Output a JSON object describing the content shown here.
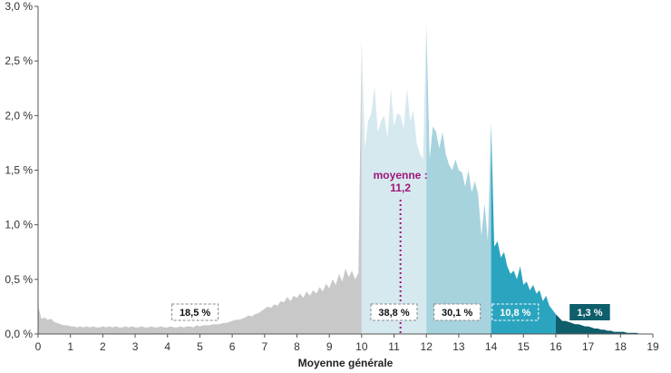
{
  "chart_data": {
    "type": "area",
    "xlabel": "Moyenne générale",
    "ylabel": "",
    "xlim": [
      0,
      19
    ],
    "ylim": [
      0,
      3.0
    ],
    "x_ticks": [
      0,
      1,
      2,
      3,
      4,
      5,
      6,
      7,
      8,
      9,
      10,
      11,
      12,
      13,
      14,
      15,
      16,
      17,
      18,
      19
    ],
    "y_ticks": [
      "0,0 %",
      "0,5 %",
      "1,0 %",
      "1,5 %",
      "2,0 %",
      "2,5 %",
      "3,0 %"
    ],
    "grid": false,
    "x_step": 0.1,
    "values": [
      0.26,
      0.14,
      0.15,
      0.13,
      0.14,
      0.11,
      0.1,
      0.09,
      0.08,
      0.08,
      0.07,
      0.07,
      0.06,
      0.07,
      0.06,
      0.07,
      0.06,
      0.07,
      0.06,
      0.06,
      0.07,
      0.06,
      0.07,
      0.06,
      0.07,
      0.06,
      0.06,
      0.07,
      0.06,
      0.07,
      0.06,
      0.06,
      0.07,
      0.06,
      0.06,
      0.07,
      0.06,
      0.06,
      0.07,
      0.06,
      0.06,
      0.07,
      0.06,
      0.06,
      0.07,
      0.06,
      0.07,
      0.07,
      0.06,
      0.08,
      0.07,
      0.08,
      0.08,
      0.08,
      0.09,
      0.09,
      0.09,
      0.1,
      0.1,
      0.11,
      0.12,
      0.13,
      0.13,
      0.14,
      0.15,
      0.17,
      0.16,
      0.18,
      0.19,
      0.21,
      0.23,
      0.25,
      0.24,
      0.27,
      0.26,
      0.3,
      0.29,
      0.34,
      0.3,
      0.35,
      0.33,
      0.37,
      0.33,
      0.39,
      0.35,
      0.4,
      0.37,
      0.43,
      0.39,
      0.46,
      0.42,
      0.5,
      0.45,
      0.55,
      0.48,
      0.6,
      0.52,
      0.58,
      0.5,
      0.56,
      2.7,
      1.7,
      1.95,
      2.02,
      2.27,
      1.85,
      1.95,
      2.0,
      1.8,
      2.25,
      1.9,
      2.02,
      2.0,
      1.88,
      2.25,
      1.95,
      2.05,
      1.75,
      1.65,
      1.6,
      2.85,
      1.6,
      1.9,
      1.85,
      1.7,
      1.85,
      1.65,
      1.55,
      1.5,
      1.6,
      1.5,
      1.48,
      1.35,
      1.5,
      1.3,
      1.4,
      1.28,
      0.9,
      1.2,
      0.85,
      1.93,
      0.8,
      0.85,
      0.7,
      0.75,
      0.62,
      0.55,
      0.58,
      0.5,
      0.62,
      0.45,
      0.48,
      0.4,
      0.45,
      0.37,
      0.4,
      0.3,
      0.35,
      0.26,
      0.22,
      0.18,
      0.15,
      0.12,
      0.12,
      0.11,
      0.1,
      0.09,
      0.09,
      0.08,
      0.07,
      0.07,
      0.06,
      0.05,
      0.05,
      0.04,
      0.04,
      0.03,
      0.03,
      0.02,
      0.02,
      0.02,
      0.02,
      0.01,
      0.01,
      0.01,
      0.01,
      0.0,
      0.0,
      0.0,
      0.0,
      0.0
    ],
    "bands": [
      {
        "from": 0,
        "to": 10,
        "label": "18,5 %",
        "label_at": 4.85,
        "color": "#c8c8c8",
        "label_style": "dashed-white"
      },
      {
        "from": 10,
        "to": 12,
        "label": "38,8 %",
        "label_at": 11.0,
        "color": "#d6e9ef",
        "label_style": "dashed-white"
      },
      {
        "from": 12,
        "to": 14,
        "label": "30,1 %",
        "label_at": 12.95,
        "color": "#a7d3de",
        "label_style": "dashed-white"
      },
      {
        "from": 14,
        "to": 16,
        "label": "10,8 %",
        "label_at": 14.75,
        "color": "#2aa4bf",
        "label_style": "dashed-band"
      },
      {
        "from": 16,
        "to": 19,
        "label": "1,3 %",
        "label_at": 17.05,
        "color": "#0f5e6b",
        "label_style": "solid-band"
      }
    ],
    "mean": {
      "x": 11.2,
      "label_lines": [
        "moyenne :",
        "11,2"
      ],
      "color": "#a0157a"
    }
  }
}
